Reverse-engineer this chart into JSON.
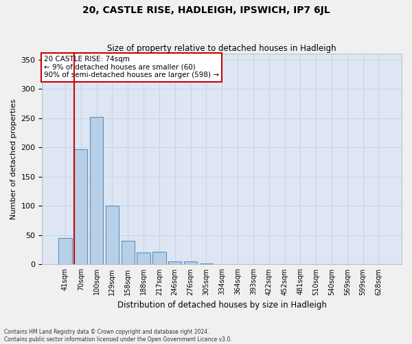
{
  "title1": "20, CASTLE RISE, HADLEIGH, IPSWICH, IP7 6JL",
  "title2": "Size of property relative to detached houses in Hadleigh",
  "xlabel": "Distribution of detached houses by size in Hadleigh",
  "ylabel": "Number of detached properties",
  "footnote1": "Contains HM Land Registry data © Crown copyright and database right 2024.",
  "footnote2": "Contains public sector information licensed under the Open Government Licence v3.0.",
  "categories": [
    "41sqm",
    "70sqm",
    "100sqm",
    "129sqm",
    "158sqm",
    "188sqm",
    "217sqm",
    "246sqm",
    "276sqm",
    "305sqm",
    "334sqm",
    "364sqm",
    "393sqm",
    "422sqm",
    "452sqm",
    "481sqm",
    "510sqm",
    "540sqm",
    "569sqm",
    "599sqm",
    "628sqm"
  ],
  "values": [
    45,
    197,
    252,
    100,
    40,
    20,
    22,
    5,
    5,
    2,
    1,
    0,
    0,
    1,
    0,
    0,
    0,
    0,
    0,
    0,
    1
  ],
  "bar_color": "#b8cfe8",
  "bar_edge_color": "#5a8fc0",
  "grid_color": "#c8d4e8",
  "background_color": "#dde6f2",
  "property_line_color": "#cc0000",
  "annotation_text": "20 CASTLE RISE: 74sqm\n← 9% of detached houses are smaller (60)\n90% of semi-detached houses are larger (598) →",
  "annotation_box_color": "#ffffff",
  "annotation_box_edge": "#cc0000",
  "ylim": [
    0,
    360
  ],
  "yticks": [
    0,
    50,
    100,
    150,
    200,
    250,
    300,
    350
  ],
  "fig_bg": "#f0f0f0"
}
